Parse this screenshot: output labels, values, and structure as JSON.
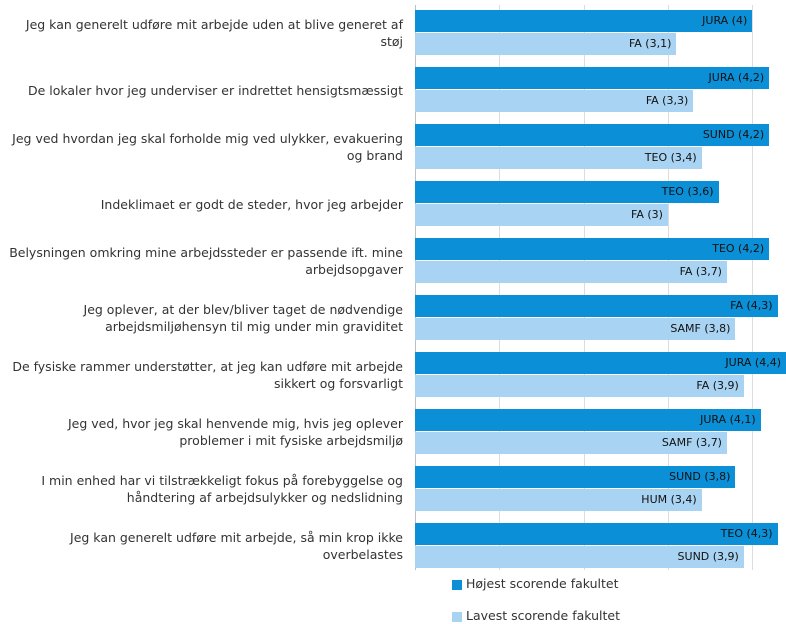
{
  "chart_data": {
    "type": "bar",
    "orientation": "horizontal",
    "categories": [
      "Jeg kan generelt udføre mit arbejde uden at blive generet af støj",
      "De lokaler hvor jeg underviser er indrettet hensigtsmæssigt",
      "Jeg ved hvordan jeg skal forholde mig ved ulykker, evakuering og brand",
      "Indeklimaet er godt de steder, hvor jeg arbejder",
      "Belysningen omkring mine arbejdssteder er passende ift. mine arbejdsopgaver",
      "Jeg oplever, at der blev/bliver taget de nødvendige arbejdsmiljøhensyn til mig under min graviditet",
      "De fysiske rammer understøtter, at jeg kan udføre mit arbejde sikkert og forsvarligt",
      "Jeg ved, hvor jeg skal henvende mig, hvis jeg oplever problemer i mit fysiske arbejdsmiljø",
      "I min enhed har vi tilstrækkeligt fokus på forebyggelse og håndtering af arbejdsulykker og nedslidning",
      "Jeg kan generelt udføre mit arbejde, så min krop ikke overbelastes"
    ],
    "series": [
      {
        "name": "Højest scorende fakultet",
        "color": "#0b8fd6",
        "values": [
          4,
          4.2,
          4.2,
          3.6,
          4.2,
          4.3,
          4.4,
          4.1,
          3.8,
          4.3
        ],
        "value_labels": [
          "JURA (4)",
          "JURA (4,2)",
          "SUND (4,2)",
          "TEO (3,6)",
          "TEO (4,2)",
          "FA (4,3)",
          "JURA (4,4)",
          "JURA (4,1)",
          "SUND (3,8)",
          "TEO (4,3)"
        ]
      },
      {
        "name": "Lavest scorende fakultet",
        "color": "#a9d3f2",
        "values": [
          3.1,
          3.3,
          3.4,
          3,
          3.7,
          3.8,
          3.9,
          3.7,
          3.4,
          3.9
        ],
        "value_labels": [
          "FA (3,1)",
          "FA (3,3)",
          "TEO (3,4)",
          "FA (3)",
          "FA (3,7)",
          "SAMF (3,8)",
          "FA (3,9)",
          "SAMF (3,7)",
          "HUM (3,4)",
          "SUND (3,9)"
        ]
      }
    ],
    "xlim": [
      0,
      4.4
    ],
    "xticks": [
      0,
      1,
      2,
      3,
      4
    ],
    "grid": true,
    "legend": "bottom"
  }
}
